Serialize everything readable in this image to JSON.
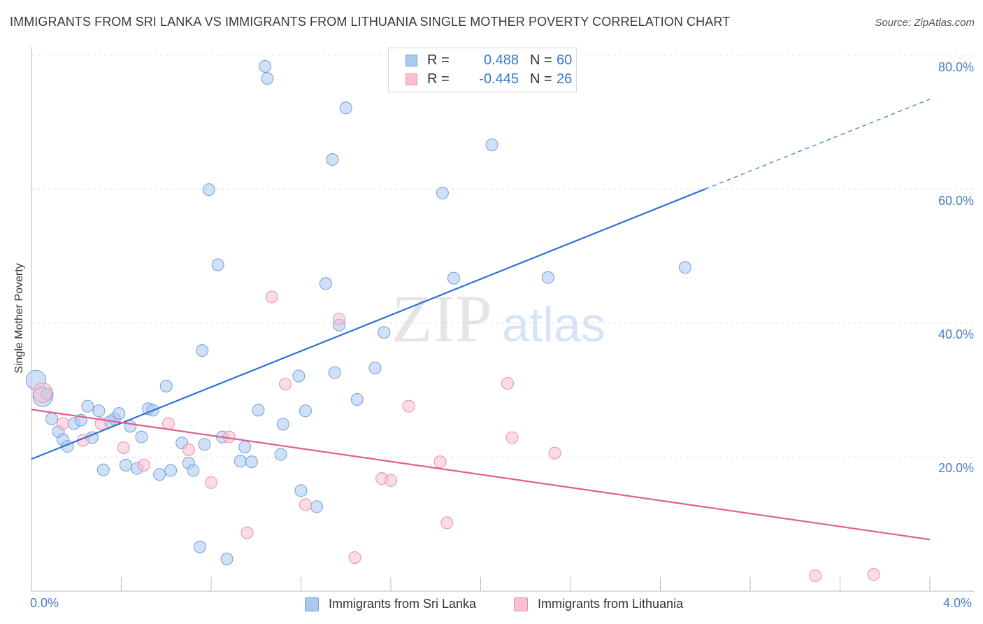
{
  "title": "IMMIGRANTS FROM SRI LANKA VS IMMIGRANTS FROM LITHUANIA SINGLE MOTHER POVERTY CORRELATION CHART",
  "source": "Source: ZipAtlas.com",
  "watermark": {
    "part1": "ZIP",
    "part2": "atlas"
  },
  "colors": {
    "blue_fill": "#aac8f0",
    "blue_stroke": "#6f9fd8",
    "blue_line": "#2f74d0",
    "pink_fill": "#f8c0d0",
    "pink_stroke": "#e890ab",
    "pink_line": "#e0608c",
    "grid": "#dddddd",
    "axis": "#bbbbbb",
    "tick_text": "#4a7ec9"
  },
  "legend_top": {
    "rows": [
      {
        "r_label": "R =",
        "r_value": "0.488",
        "n_label": "N =",
        "n_value": "60"
      },
      {
        "r_label": "R =",
        "r_value": "-0.445",
        "n_label": "N =",
        "n_value": "26"
      }
    ]
  },
  "legend_bottom": {
    "items": [
      {
        "label": "Immigrants from Sri Lanka"
      },
      {
        "label": "Immigrants from Lithuania"
      }
    ]
  },
  "chart_data": {
    "type": "scatter",
    "title": "IMMIGRANTS FROM SRI LANKA VS IMMIGRANTS FROM LITHUANIA SINGLE MOTHER POVERTY CORRELATION CHART",
    "xlabel": "",
    "ylabel": "Single Mother Poverty",
    "xlim": [
      0,
      4
    ],
    "ylim": [
      0,
      80
    ],
    "x_tick_labels": [
      "0.0%",
      "4.0%"
    ],
    "y_ticks": [
      20,
      40,
      60,
      80
    ],
    "y_tick_labels": [
      "20.0%",
      "40.0%",
      "60.0%",
      "80.0%"
    ],
    "grid": true,
    "legend_position": "top-center",
    "series": [
      {
        "name": "Immigrants from Sri Lanka",
        "color": "#6f9fd8",
        "R": 0.488,
        "N": 60,
        "trend": {
          "x": [
            0,
            3.0,
            4.0
          ],
          "y": [
            19.7,
            60.0,
            73.4
          ],
          "solid_until_x": 3.0
        },
        "points": [
          {
            "x": 0.02,
            "y": 31.5,
            "big": true
          },
          {
            "x": 0.05,
            "y": 29.0,
            "big": true
          },
          {
            "x": 0.07,
            "y": 29.4
          },
          {
            "x": 0.09,
            "y": 25.7
          },
          {
            "x": 0.12,
            "y": 23.8
          },
          {
            "x": 0.14,
            "y": 22.6
          },
          {
            "x": 0.16,
            "y": 21.6
          },
          {
            "x": 0.19,
            "y": 25.0
          },
          {
            "x": 0.22,
            "y": 25.5
          },
          {
            "x": 0.25,
            "y": 27.6
          },
          {
            "x": 0.27,
            "y": 22.9
          },
          {
            "x": 0.3,
            "y": 26.9
          },
          {
            "x": 0.32,
            "y": 18.1
          },
          {
            "x": 0.35,
            "y": 25.3
          },
          {
            "x": 0.37,
            "y": 25.7
          },
          {
            "x": 0.39,
            "y": 26.5
          },
          {
            "x": 0.42,
            "y": 18.8
          },
          {
            "x": 0.44,
            "y": 24.6
          },
          {
            "x": 0.47,
            "y": 18.3
          },
          {
            "x": 0.49,
            "y": 23.0
          },
          {
            "x": 0.52,
            "y": 27.2
          },
          {
            "x": 0.54,
            "y": 27.0
          },
          {
            "x": 0.57,
            "y": 17.4
          },
          {
            "x": 0.6,
            "y": 30.6
          },
          {
            "x": 0.62,
            "y": 18.0
          },
          {
            "x": 0.67,
            "y": 22.1
          },
          {
            "x": 0.7,
            "y": 19.1
          },
          {
            "x": 0.72,
            "y": 18.0
          },
          {
            "x": 0.75,
            "y": 6.6
          },
          {
            "x": 0.76,
            "y": 35.9
          },
          {
            "x": 0.77,
            "y": 21.9
          },
          {
            "x": 0.79,
            "y": 59.9
          },
          {
            "x": 0.83,
            "y": 48.7
          },
          {
            "x": 0.85,
            "y": 23.0
          },
          {
            "x": 0.87,
            "y": 4.8
          },
          {
            "x": 0.93,
            "y": 19.4
          },
          {
            "x": 0.95,
            "y": 21.5
          },
          {
            "x": 0.98,
            "y": 19.3
          },
          {
            "x": 1.01,
            "y": 27.0
          },
          {
            "x": 1.04,
            "y": 78.3
          },
          {
            "x": 1.05,
            "y": 76.5
          },
          {
            "x": 1.11,
            "y": 20.4
          },
          {
            "x": 1.12,
            "y": 24.9
          },
          {
            "x": 1.19,
            "y": 32.1
          },
          {
            "x": 1.2,
            "y": 15.0
          },
          {
            "x": 1.22,
            "y": 26.9
          },
          {
            "x": 1.27,
            "y": 12.6
          },
          {
            "x": 1.31,
            "y": 45.9
          },
          {
            "x": 1.34,
            "y": 64.4
          },
          {
            "x": 1.35,
            "y": 32.6
          },
          {
            "x": 1.37,
            "y": 39.7
          },
          {
            "x": 1.4,
            "y": 72.1
          },
          {
            "x": 1.45,
            "y": 28.6
          },
          {
            "x": 1.53,
            "y": 33.3
          },
          {
            "x": 1.57,
            "y": 38.6
          },
          {
            "x": 1.83,
            "y": 59.4
          },
          {
            "x": 1.88,
            "y": 46.7
          },
          {
            "x": 2.05,
            "y": 66.6
          },
          {
            "x": 2.3,
            "y": 46.8
          },
          {
            "x": 2.91,
            "y": 48.3
          }
        ]
      },
      {
        "name": "Immigrants from Lithuania",
        "color": "#e890ab",
        "R": -0.445,
        "N": 26,
        "trend": {
          "x": [
            0,
            4.0
          ],
          "y": [
            27.1,
            7.7
          ]
        },
        "points": [
          {
            "x": 0.05,
            "y": 29.6,
            "big": true
          },
          {
            "x": 0.14,
            "y": 25.0
          },
          {
            "x": 0.23,
            "y": 22.5
          },
          {
            "x": 0.31,
            "y": 25.0
          },
          {
            "x": 0.41,
            "y": 21.4
          },
          {
            "x": 0.5,
            "y": 18.8
          },
          {
            "x": 0.61,
            "y": 25.0
          },
          {
            "x": 0.7,
            "y": 21.1
          },
          {
            "x": 0.8,
            "y": 16.2
          },
          {
            "x": 0.88,
            "y": 23.0
          },
          {
            "x": 0.96,
            "y": 8.7
          },
          {
            "x": 1.07,
            "y": 43.9
          },
          {
            "x": 1.13,
            "y": 30.9
          },
          {
            "x": 1.22,
            "y": 12.9
          },
          {
            "x": 1.37,
            "y": 40.6
          },
          {
            "x": 1.44,
            "y": 5.0
          },
          {
            "x": 1.56,
            "y": 16.8
          },
          {
            "x": 1.6,
            "y": 16.5
          },
          {
            "x": 1.68,
            "y": 27.6
          },
          {
            "x": 1.82,
            "y": 19.3
          },
          {
            "x": 1.85,
            "y": 10.2
          },
          {
            "x": 2.12,
            "y": 31.0
          },
          {
            "x": 2.14,
            "y": 22.9
          },
          {
            "x": 2.33,
            "y": 20.6
          },
          {
            "x": 3.49,
            "y": 2.3
          },
          {
            "x": 3.75,
            "y": 2.5
          }
        ]
      }
    ]
  }
}
